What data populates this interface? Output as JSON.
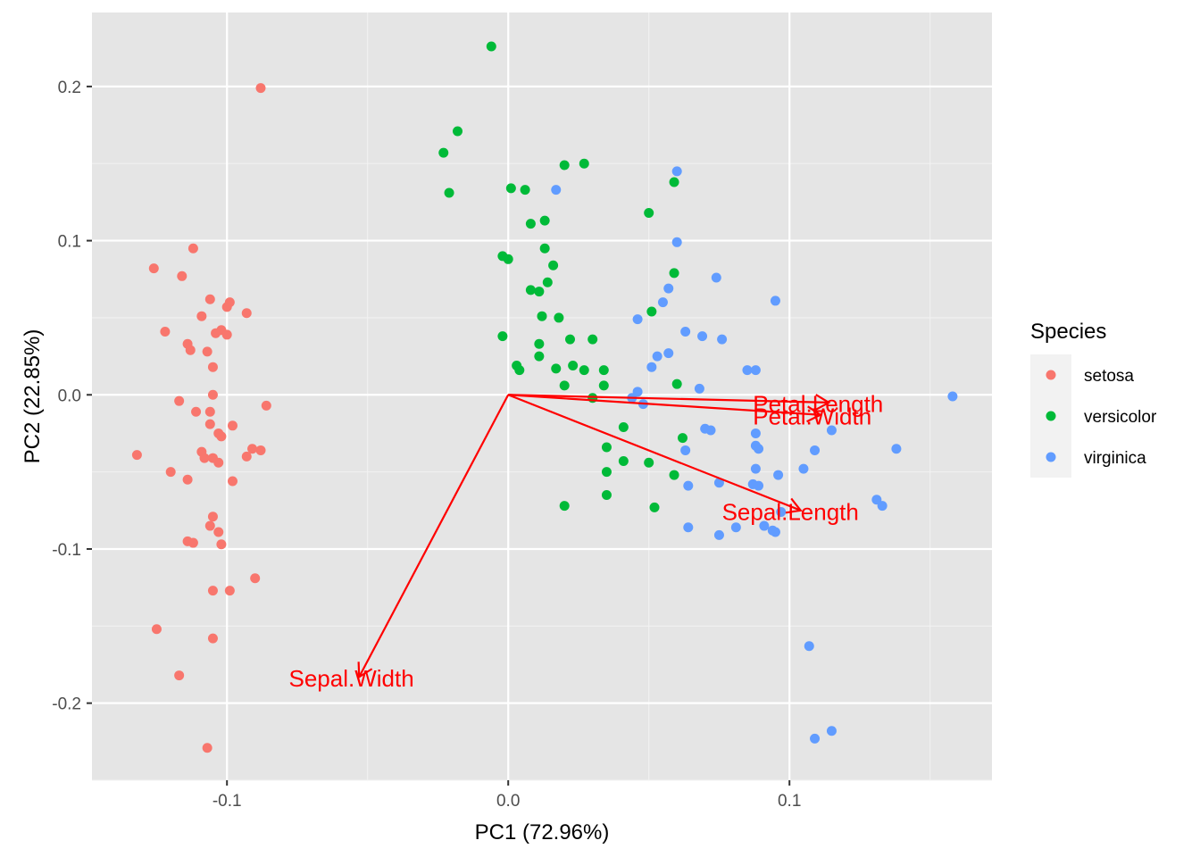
{
  "chart_data": {
    "type": "scatter",
    "title": "",
    "xlabel": "PC1 (72.96%)",
    "ylabel": "PC2 (22.85%)",
    "xlim": [
      -0.148,
      0.172
    ],
    "ylim": [
      -0.25,
      0.248
    ],
    "x_ticks": [
      -0.1,
      0.0,
      0.1
    ],
    "x_tick_labels": [
      "-0.1",
      "0.0",
      "0.1"
    ],
    "y_ticks": [
      -0.2,
      -0.1,
      0.0,
      0.1,
      0.2
    ],
    "y_tick_labels": [
      "-0.2",
      "-0.1",
      "0.0",
      "0.1",
      "0.2"
    ],
    "grid": true,
    "background": "#e5e5e5",
    "legend": {
      "title": "Species",
      "position": "right",
      "entries": [
        {
          "label": "setosa",
          "color": "#f8766d"
        },
        {
          "label": "versicolor",
          "color": "#00ba38"
        },
        {
          "label": "virginica",
          "color": "#619cff"
        }
      ]
    },
    "series": [
      {
        "name": "setosa",
        "color": "#f8766d",
        "points": [
          [
            -0.088,
            0.199
          ],
          [
            -0.112,
            0.095
          ],
          [
            -0.126,
            0.082
          ],
          [
            -0.116,
            0.077
          ],
          [
            -0.106,
            0.062
          ],
          [
            -0.099,
            0.06
          ],
          [
            -0.1,
            0.057
          ],
          [
            -0.093,
            0.053
          ],
          [
            -0.109,
            0.051
          ],
          [
            -0.122,
            0.041
          ],
          [
            -0.104,
            0.04
          ],
          [
            -0.102,
            0.042
          ],
          [
            -0.1,
            0.039
          ],
          [
            -0.114,
            0.033
          ],
          [
            -0.113,
            0.029
          ],
          [
            -0.107,
            0.028
          ],
          [
            -0.105,
            0.018
          ],
          [
            -0.105,
            0.0
          ],
          [
            -0.117,
            -0.004
          ],
          [
            -0.111,
            -0.011
          ],
          [
            -0.106,
            -0.011
          ],
          [
            -0.086,
            -0.007
          ],
          [
            -0.106,
            -0.019
          ],
          [
            -0.098,
            -0.02
          ],
          [
            -0.103,
            -0.025
          ],
          [
            -0.102,
            -0.027
          ],
          [
            -0.091,
            -0.035
          ],
          [
            -0.088,
            -0.036
          ],
          [
            -0.093,
            -0.04
          ],
          [
            -0.109,
            -0.037
          ],
          [
            -0.108,
            -0.041
          ],
          [
            -0.105,
            -0.041
          ],
          [
            -0.103,
            -0.044
          ],
          [
            -0.132,
            -0.039
          ],
          [
            -0.12,
            -0.05
          ],
          [
            -0.114,
            -0.055
          ],
          [
            -0.098,
            -0.056
          ],
          [
            -0.105,
            -0.079
          ],
          [
            -0.106,
            -0.085
          ],
          [
            -0.103,
            -0.089
          ],
          [
            -0.114,
            -0.095
          ],
          [
            -0.112,
            -0.096
          ],
          [
            -0.102,
            -0.097
          ],
          [
            -0.09,
            -0.119
          ],
          [
            -0.105,
            -0.127
          ],
          [
            -0.099,
            -0.127
          ],
          [
            -0.125,
            -0.152
          ],
          [
            -0.105,
            -0.158
          ],
          [
            -0.117,
            -0.182
          ],
          [
            -0.107,
            -0.229
          ]
        ]
      },
      {
        "name": "versicolor",
        "color": "#00ba38",
        "points": [
          [
            -0.006,
            0.226
          ],
          [
            -0.018,
            0.171
          ],
          [
            -0.023,
            0.157
          ],
          [
            0.02,
            0.149
          ],
          [
            0.027,
            0.15
          ],
          [
            -0.021,
            0.131
          ],
          [
            0.001,
            0.134
          ],
          [
            0.006,
            0.133
          ],
          [
            0.059,
            0.138
          ],
          [
            0.05,
            0.118
          ],
          [
            0.013,
            0.113
          ],
          [
            0.008,
            0.111
          ],
          [
            0.013,
            0.095
          ],
          [
            -0.002,
            0.09
          ],
          [
            0.0,
            0.088
          ],
          [
            0.016,
            0.084
          ],
          [
            0.059,
            0.079
          ],
          [
            0.014,
            0.073
          ],
          [
            0.008,
            0.068
          ],
          [
            0.011,
            0.067
          ],
          [
            0.051,
            0.054
          ],
          [
            0.012,
            0.051
          ],
          [
            0.018,
            0.05
          ],
          [
            -0.002,
            0.038
          ],
          [
            0.022,
            0.036
          ],
          [
            0.03,
            0.036
          ],
          [
            0.011,
            0.033
          ],
          [
            0.011,
            0.025
          ],
          [
            0.003,
            0.019
          ],
          [
            0.004,
            0.016
          ],
          [
            0.017,
            0.017
          ],
          [
            0.027,
            0.016
          ],
          [
            0.023,
            0.019
          ],
          [
            0.034,
            0.016
          ],
          [
            0.02,
            0.006
          ],
          [
            0.034,
            0.006
          ],
          [
            0.06,
            0.007
          ],
          [
            0.03,
            -0.002
          ],
          [
            0.041,
            -0.021
          ],
          [
            0.062,
            -0.028
          ],
          [
            0.035,
            -0.034
          ],
          [
            0.041,
            -0.043
          ],
          [
            0.05,
            -0.044
          ],
          [
            0.035,
            -0.05
          ],
          [
            0.059,
            -0.052
          ],
          [
            0.035,
            -0.065
          ],
          [
            0.02,
            -0.072
          ],
          [
            0.052,
            -0.073
          ]
        ]
      },
      {
        "name": "virginica",
        "color": "#619cff",
        "points": [
          [
            0.06,
            0.145
          ],
          [
            0.017,
            0.133
          ],
          [
            0.06,
            0.099
          ],
          [
            0.074,
            0.076
          ],
          [
            0.057,
            0.069
          ],
          [
            0.095,
            0.061
          ],
          [
            0.055,
            0.06
          ],
          [
            0.046,
            0.049
          ],
          [
            0.063,
            0.041
          ],
          [
            0.069,
            0.038
          ],
          [
            0.076,
            0.036
          ],
          [
            0.057,
            0.027
          ],
          [
            0.053,
            0.025
          ],
          [
            0.051,
            0.018
          ],
          [
            0.085,
            0.016
          ],
          [
            0.088,
            0.016
          ],
          [
            0.068,
            0.004
          ],
          [
            0.046,
            0.002
          ],
          [
            0.044,
            -0.002
          ],
          [
            0.048,
            -0.006
          ],
          [
            0.158,
            -0.001
          ],
          [
            0.07,
            -0.022
          ],
          [
            0.072,
            -0.023
          ],
          [
            0.088,
            -0.025
          ],
          [
            0.115,
            -0.023
          ],
          [
            0.088,
            -0.033
          ],
          [
            0.089,
            -0.035
          ],
          [
            0.109,
            -0.036
          ],
          [
            0.138,
            -0.035
          ],
          [
            0.063,
            -0.036
          ],
          [
            0.105,
            -0.048
          ],
          [
            0.088,
            -0.048
          ],
          [
            0.096,
            -0.052
          ],
          [
            0.089,
            -0.059
          ],
          [
            0.087,
            -0.058
          ],
          [
            0.064,
            -0.059
          ],
          [
            0.075,
            -0.057
          ],
          [
            0.131,
            -0.068
          ],
          [
            0.133,
            -0.072
          ],
          [
            0.097,
            -0.076
          ],
          [
            0.091,
            -0.085
          ],
          [
            0.081,
            -0.086
          ],
          [
            0.064,
            -0.086
          ],
          [
            0.094,
            -0.088
          ],
          [
            0.095,
            -0.089
          ],
          [
            0.075,
            -0.091
          ],
          [
            0.107,
            -0.163
          ],
          [
            0.115,
            -0.218
          ],
          [
            0.109,
            -0.223
          ]
        ]
      }
    ],
    "loadings": [
      {
        "label": "Petal.Length",
        "x": 0.114,
        "y": -0.005,
        "label_x": 0.087,
        "label_y": -0.006
      },
      {
        "label": "Petal.Width",
        "x": 0.111,
        "y": -0.013,
        "label_x": 0.087,
        "label_y": -0.014
      },
      {
        "label": "Sepal.Length",
        "x": 0.104,
        "y": -0.075,
        "label_x": 0.076,
        "label_y": -0.076
      },
      {
        "label": "Sepal.Width",
        "x": -0.053,
        "y": -0.183,
        "label_x": -0.078,
        "label_y": -0.184
      }
    ],
    "loading_color": "#ff0000"
  }
}
